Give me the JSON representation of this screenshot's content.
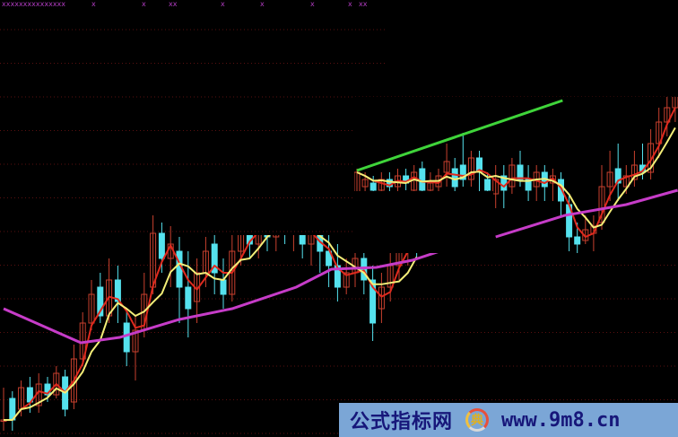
{
  "chart_data": {
    "type": "candlestick",
    "title": "",
    "xlabel": "",
    "ylabel": "",
    "grid": true,
    "colors": {
      "background": "#000000",
      "up_candle": "#c8402e",
      "down_candle": "#55e2ee",
      "fast_ma": "#e02a1e",
      "slow_ma": "#f4ee78",
      "long_ma": "#c63cc8",
      "channel_line": "#3fd43a",
      "grid": "#5a1010",
      "top_markers": "#b03cc0"
    },
    "top_markers": [
      "xxxxxxxxxxxxxxx",
      "x",
      "x",
      "xx",
      "x",
      "x",
      "x",
      "x",
      "xx"
    ],
    "panels": [
      {
        "name": "",
        "candles_ohlc": [
          [
            3,
            null,
            12,
            0
          ],
          [
            9,
            3,
            11,
            0
          ],
          [
            6,
            12,
            14,
            4
          ],
          [
            12,
            8,
            15,
            5
          ],
          [
            7,
            13,
            16,
            5
          ],
          [
            13,
            10,
            15,
            8
          ],
          [
            10,
            16,
            18,
            9
          ],
          [
            15,
            6,
            17,
            4
          ],
          [
            8,
            20,
            24,
            6
          ],
          [
            20,
            30,
            33,
            18
          ],
          [
            30,
            38,
            42,
            28
          ],
          [
            40,
            32,
            44,
            30
          ],
          [
            32,
            42,
            48,
            30
          ],
          [
            42,
            36,
            46,
            30
          ],
          [
            30,
            22,
            34,
            18
          ],
          [
            22,
            28,
            32,
            14
          ],
          [
            28,
            38,
            44,
            26
          ],
          [
            40,
            55,
            60,
            38
          ],
          [
            55,
            48,
            58,
            44
          ],
          [
            48,
            52,
            57,
            40
          ],
          [
            50,
            40,
            54,
            30
          ],
          [
            40,
            34,
            50,
            26
          ],
          [
            36,
            44,
            48,
            30
          ],
          [
            44,
            50,
            54,
            40
          ],
          [
            52,
            44,
            56,
            38
          ],
          [
            42,
            38,
            48,
            34
          ],
          [
            38,
            50,
            56,
            36
          ],
          [
            50,
            56,
            60,
            46
          ],
          [
            56,
            52,
            60,
            48
          ],
          [
            52,
            58,
            62,
            48
          ],
          [
            58,
            54,
            60,
            50
          ],
          [
            54,
            60,
            64,
            50
          ],
          [
            60,
            55,
            62,
            52
          ],
          [
            55,
            58,
            62,
            50
          ],
          [
            58,
            52,
            60,
            48
          ],
          [
            52,
            56,
            60,
            46
          ],
          [
            56,
            50,
            58,
            44
          ],
          [
            50,
            46,
            56,
            40
          ],
          [
            46,
            40,
            52,
            36
          ],
          [
            40,
            44,
            48,
            38
          ],
          [
            44,
            48,
            52,
            40
          ],
          [
            48,
            42,
            50,
            38
          ],
          [
            42,
            30,
            46,
            25
          ],
          [
            34,
            40,
            44,
            30
          ],
          [
            40,
            46,
            50,
            36
          ],
          [
            46,
            50,
            54,
            42
          ],
          [
            50,
            54,
            58,
            46
          ],
          [
            54,
            52,
            58,
            48
          ]
        ],
        "long_ma": [
          [
            0,
            34
          ],
          [
            8.8,
            24.5
          ],
          [
            13.2,
            26
          ],
          [
            20,
            31
          ],
          [
            26,
            34
          ],
          [
            33.3,
            40
          ],
          [
            37.3,
            45
          ],
          [
            42.4,
            45.5
          ],
          [
            46.5,
            47.5
          ],
          [
            52.7,
            52.5
          ]
        ]
      },
      {
        "name": "",
        "candles_ohlc": [
          [
            66,
            72,
            73,
            65
          ],
          [
            68,
            70,
            72,
            66
          ],
          [
            69,
            67,
            71,
            65
          ],
          [
            67,
            70,
            72,
            66
          ],
          [
            70,
            68,
            72,
            66
          ],
          [
            68,
            71,
            73,
            66
          ],
          [
            71,
            69,
            73,
            67
          ],
          [
            67,
            72,
            74,
            66
          ],
          [
            73,
            67,
            75,
            66
          ],
          [
            67,
            69,
            72,
            65
          ],
          [
            68,
            71,
            73,
            66
          ],
          [
            72,
            75,
            80,
            68
          ],
          [
            73,
            68,
            76,
            66
          ],
          [
            74,
            70,
            83,
            68
          ],
          [
            70,
            76,
            78,
            68
          ],
          [
            76,
            72,
            78,
            64
          ],
          [
            70,
            67,
            72,
            64
          ],
          [
            66,
            70,
            74,
            62
          ],
          [
            71,
            67,
            74,
            62
          ],
          [
            68,
            74,
            76,
            66
          ],
          [
            74,
            70,
            78,
            68
          ],
          [
            70,
            67,
            74,
            64
          ],
          [
            68,
            72,
            74,
            64
          ],
          [
            72,
            68,
            74,
            64
          ],
          [
            69,
            71,
            73,
            64
          ],
          [
            70,
            64,
            72,
            60
          ],
          [
            63,
            54,
            66,
            50
          ],
          [
            54,
            52,
            58,
            49
          ],
          [
            53,
            56,
            60,
            52
          ],
          [
            55,
            57,
            60,
            50
          ],
          [
            58,
            68,
            74,
            56
          ],
          [
            68,
            72,
            78,
            64
          ],
          [
            73,
            69,
            80,
            64
          ],
          [
            68,
            71,
            74,
            66
          ],
          [
            70,
            74,
            78,
            68
          ],
          [
            74,
            72,
            80,
            70
          ],
          [
            72,
            80,
            84,
            70
          ],
          [
            80,
            86,
            90,
            76
          ],
          [
            86,
            90,
            94,
            82
          ],
          [
            90,
            94,
            96,
            86
          ]
        ],
        "long_ma": [
          [
            17,
            54
          ],
          [
            25.5,
            60
          ],
          [
            33,
            63
          ],
          [
            39.3,
            67
          ]
        ],
        "channel_line": [
          [
            0,
            72.5
          ],
          [
            25.2,
            92
          ]
        ]
      }
    ]
  },
  "watermark": {
    "site_name": "公式指标网",
    "url": "www.9m8.cn",
    "logo_char": "典"
  }
}
